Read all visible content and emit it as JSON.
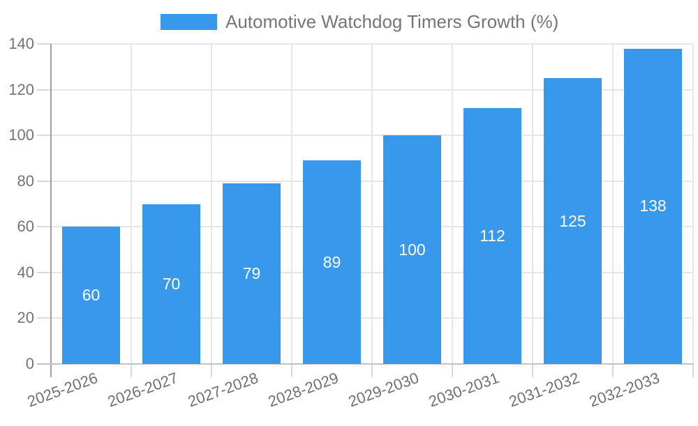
{
  "chart_data": {
    "type": "bar",
    "title": "",
    "categories": [
      "2025-2026",
      "2026-2027",
      "2027-2028",
      "2028-2029",
      "2029-2030",
      "2030-2031",
      "2031-2032",
      "2032-2033"
    ],
    "series": [
      {
        "name": "Automotive Watchdog Timers Growth (%)",
        "values": [
          60,
          70,
          79,
          89,
          100,
          112,
          125,
          138
        ],
        "color": "#3898EC"
      }
    ],
    "xlabel": "",
    "ylabel": "",
    "ylim": [
      0,
      140
    ],
    "yticks": [
      0,
      20,
      40,
      60,
      80,
      100,
      120,
      140
    ],
    "grid": true,
    "legend_position": "top",
    "value_labels_position": "inside-center",
    "value_label_color": "#ffffff",
    "x_label_rotation_deg": -20
  },
  "colors": {
    "bar": "#3898EC",
    "gridline": "#E6E6E6",
    "tick": "#D9D9D9",
    "y_axis_line": "#9E9E9E",
    "x_axis_line": "#C2C2C2",
    "y_tick_text": "#737373",
    "x_tick_text": "#707070",
    "legend_text": "#757575",
    "background": "#FFFFFF"
  }
}
